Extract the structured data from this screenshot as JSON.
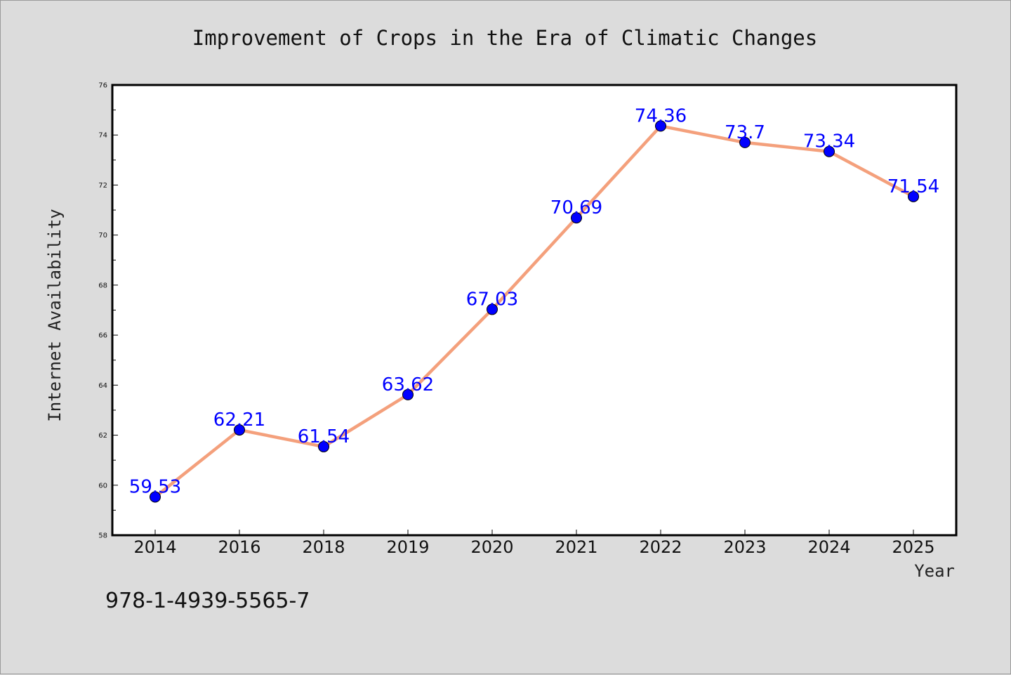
{
  "chart_data": {
    "type": "line",
    "title": "Improvement of Crops in the Era of Climatic Changes",
    "xlabel": "Year",
    "ylabel": "Internet Availability",
    "categories": [
      "2014",
      "2016",
      "2018",
      "2019",
      "2020",
      "2021",
      "2022",
      "2023",
      "2024",
      "2025"
    ],
    "values": [
      59.53,
      62.21,
      61.54,
      63.62,
      67.03,
      70.69,
      74.36,
      73.7,
      73.34,
      71.54
    ],
    "data_labels": [
      "59.53",
      "62.21",
      "61.54",
      "63.62",
      "67.03",
      "70.69",
      "74.36",
      "73.7",
      "73.34",
      "71.54"
    ],
    "ylim": [
      58,
      76
    ],
    "yticks": [
      58,
      60,
      62,
      64,
      66,
      68,
      70,
      72,
      74,
      76
    ],
    "grid": false,
    "legend": "none",
    "colors": {
      "line": "#f4a07c",
      "marker": "#0000ff",
      "marker_edge": "#000000",
      "data_label": "#0000ff",
      "plot_bg": "#ffffff",
      "figure_bg": "#dcdcdc"
    }
  },
  "annotation": {
    "isbn": "978-1-4939-5565-7"
  }
}
